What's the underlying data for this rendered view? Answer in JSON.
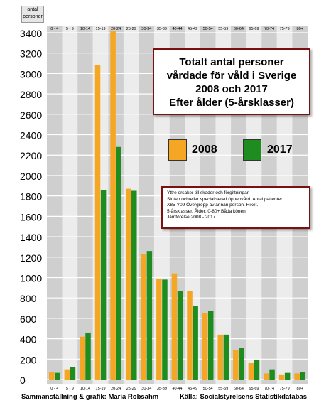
{
  "y_unit_label": [
    "antal",
    "personer"
  ],
  "title_lines": [
    "Totalt antal personer",
    "vårdade för våld i Sverige",
    "2008 och 2017",
    "Efter ålder (5-årsklasser)"
  ],
  "note_lines": [
    "Yttre orsaker till skador och förgiftningar.",
    "Sluten och/eller specialiserad öppenvård. Antal patienter.",
    "X85-Y09 Övergrepp av annan person. Riket.",
    "5-årsklasser. Ålder: 0-80+ Båda könen",
    "Jämförelse 2008 - 2017"
  ],
  "footer_left": "Sammanställning & grafik: Maria Robsahm",
  "footer_right": "Källa: Socialstyrelsens Statistikdatabas",
  "colors": {
    "s2008": "#f5a623",
    "s2017": "#1e8c1e",
    "band_dark": "#cfcfcf",
    "band_light": "#ececec"
  },
  "chart_data": {
    "type": "bar",
    "categories": [
      "0 - 4",
      "5 - 9",
      "10-14",
      "15-19",
      "20-24",
      "25-29",
      "30-34",
      "35-39",
      "40-44",
      "45-49",
      "50-54",
      "55-59",
      "60-64",
      "65-69",
      "70-74",
      "75-79",
      "80+"
    ],
    "series": [
      {
        "name": "2008",
        "values": [
          70,
          100,
          420,
          3080,
          3420,
          1870,
          1230,
          990,
          1040,
          870,
          650,
          440,
          290,
          160,
          60,
          50,
          60
        ]
      },
      {
        "name": "2017",
        "values": [
          65,
          120,
          460,
          1860,
          2280,
          1850,
          1260,
          980,
          870,
          720,
          670,
          440,
          310,
          190,
          100,
          65,
          75
        ]
      }
    ],
    "yticks": [
      0,
      200,
      400,
      600,
      800,
      1000,
      1200,
      1400,
      1600,
      1800,
      2000,
      2200,
      2400,
      2600,
      2800,
      3000,
      3200,
      3400
    ],
    "ylim": [
      0,
      3500
    ],
    "legend": [
      "2008",
      "2017"
    ],
    "grid": true
  }
}
